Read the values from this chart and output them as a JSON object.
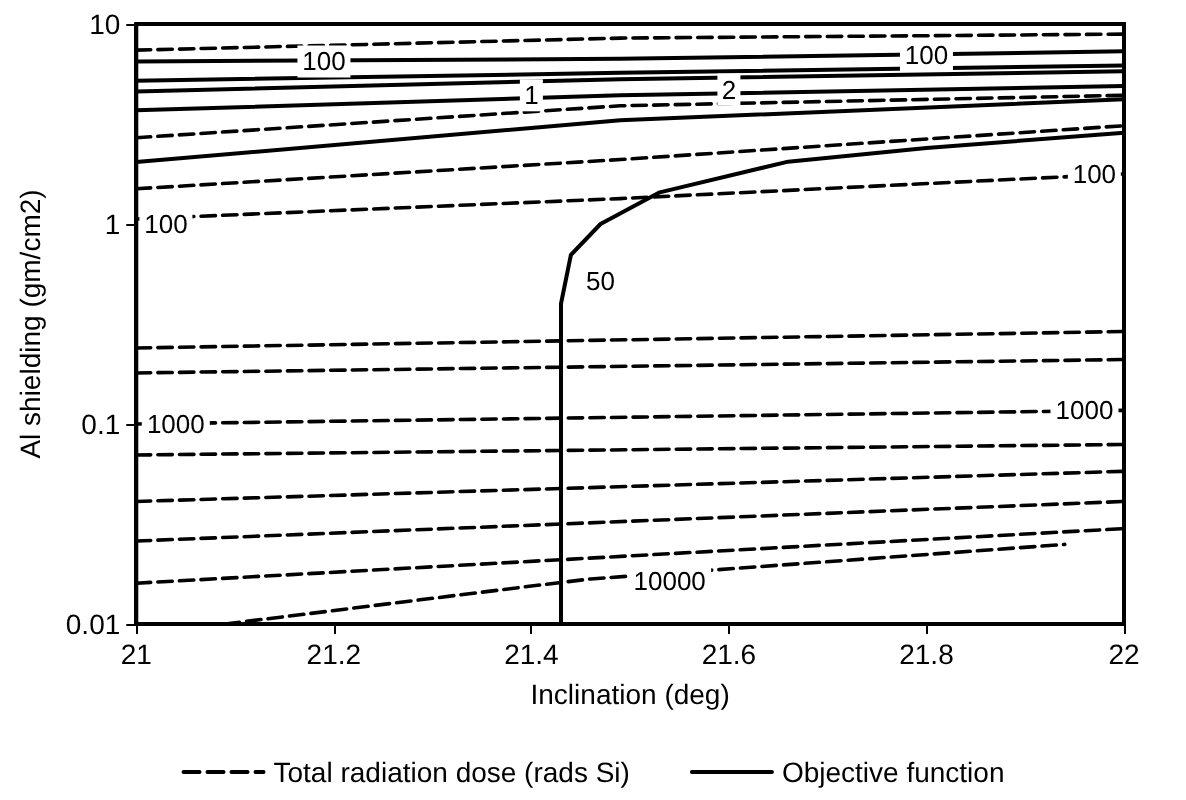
{
  "chart_data": {
    "type": "line",
    "xlabel": "Inclination (deg)",
    "ylabel": "Al shielding (gm/cm2)",
    "xlim": [
      21,
      22
    ],
    "xticks": [
      21,
      21.2,
      21.4,
      21.6,
      21.8,
      22
    ],
    "ylim": [
      0.01,
      10
    ],
    "yticks": [
      0.01,
      0.1,
      1,
      10
    ],
    "log": "y",
    "grid": false,
    "legend": "bottom",
    "marker": "none",
    "series": [
      {
        "name": "Total radiation dose (rads Si)",
        "color": "#000000",
        "line_style": "dashed",
        "x": [
          21,
          21.49,
          22
        ],
        "values": [
          7.4,
          8.5,
          8.9
        ]
      },
      {
        "color": "#000000",
        "line_style": "dashed",
        "x": [
          21,
          21.49,
          22
        ],
        "values": [
          2.7,
          3.9,
          4.4
        ]
      },
      {
        "color": "#000000",
        "line_style": "dashed",
        "x": [
          21,
          21.49,
          22
        ],
        "values": [
          1.5,
          2.1,
          3.1
        ]
      },
      {
        "color": "#000000",
        "line_style": "dashed",
        "x": [
          21,
          21.49,
          22
        ],
        "values": [
          1.06,
          1.34,
          1.78
        ]
      },
      {
        "color": "#000000",
        "line_style": "dashed",
        "x": [
          21,
          22
        ],
        "values": [
          0.24,
          0.29
        ]
      },
      {
        "color": "#000000",
        "line_style": "dashed",
        "x": [
          21,
          22
        ],
        "values": [
          0.18,
          0.21
        ]
      },
      {
        "color": "#000000",
        "line_style": "dashed",
        "x": [
          21,
          22
        ],
        "values": [
          0.1,
          0.117
        ]
      },
      {
        "color": "#000000",
        "line_style": "dashed",
        "x": [
          21,
          22
        ],
        "values": [
          0.07,
          0.079
        ]
      },
      {
        "color": "#000000",
        "line_style": "dashed",
        "x": [
          21,
          22
        ],
        "values": [
          0.041,
          0.058
        ]
      },
      {
        "color": "#000000",
        "line_style": "dashed",
        "x": [
          21,
          22
        ],
        "values": [
          0.026,
          0.041
        ]
      },
      {
        "color": "#000000",
        "line_style": "dashed",
        "x": [
          21,
          22
        ],
        "values": [
          0.016,
          0.03
        ]
      },
      {
        "color": "#000000",
        "line_style": "dashed",
        "x": [
          21.09,
          21.41,
          21.46,
          21.94
        ],
        "values": [
          0.01,
          0.0157,
          0.0168,
          0.025
        ]
      },
      {
        "name": "Objective function",
        "color": "#000000",
        "line_style": "solid",
        "x": [
          21,
          21.49,
          22
        ],
        "values": [
          6.5,
          6.7,
          7.3
        ]
      },
      {
        "color": "#000000",
        "line_style": "solid",
        "x": [
          21,
          21.49,
          22
        ],
        "values": [
          5.2,
          5.7,
          6.2
        ]
      },
      {
        "color": "#000000",
        "line_style": "solid",
        "x": [
          21,
          21.49,
          22
        ],
        "values": [
          4.6,
          5.3,
          5.8
        ]
      },
      {
        "color": "#000000",
        "line_style": "solid",
        "x": [
          21,
          21.49,
          22
        ],
        "values": [
          3.7,
          4.4,
          4.9
        ]
      },
      {
        "color": "#000000",
        "line_style": "solid",
        "x": [
          21,
          21.49,
          22
        ],
        "values": [
          2.04,
          3.3,
          4.2
        ]
      },
      {
        "color": "#000000",
        "line_style": "solid",
        "x": [
          21.43,
          21.43,
          21.44,
          21.47,
          21.53,
          21.66,
          21.8,
          22
        ],
        "values": [
          0.01,
          0.4,
          0.7,
          1.0,
          1.44,
          2.05,
          2.4,
          2.86
        ]
      }
    ],
    "annotations": [
      {
        "text": "100",
        "x": 21.19,
        "y": 6.5
      },
      {
        "text": "100",
        "x": 21.8,
        "y": 7.0
      },
      {
        "text": "1",
        "x": 21.4,
        "y": 4.4
      },
      {
        "text": "2",
        "x": 21.6,
        "y": 4.7
      },
      {
        "text": "50",
        "x": 21.47,
        "y": 0.52
      },
      {
        "text": "100",
        "x": 21.03,
        "y": 1.0
      },
      {
        "text": "100",
        "x": 21.97,
        "y": 1.78
      },
      {
        "text": "1000",
        "x": 21.04,
        "y": 0.1
      },
      {
        "text": "1000",
        "x": 21.96,
        "y": 0.117
      },
      {
        "text": "10000",
        "x": 21.54,
        "y": 0.0165
      }
    ]
  }
}
